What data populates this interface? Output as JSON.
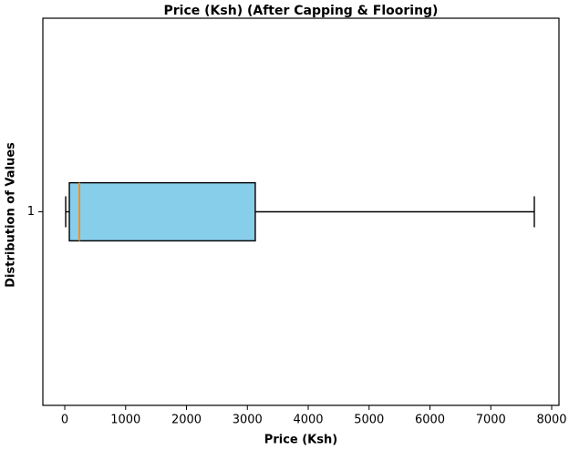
{
  "chart_data": {
    "type": "box",
    "title": "Price (Ksh) (After Capping & Flooring)",
    "xlabel": "Price (Ksh)",
    "ylabel": "Distribution of Values",
    "categories": [
      "1"
    ],
    "boxes": [
      {
        "whisker_low": 15,
        "q1": 75,
        "median": 240,
        "q3": 3130,
        "whisker_high": 7715
      }
    ],
    "box_color": "#87ceeb",
    "median_color": "#e69138",
    "xlim": [
      -360,
      8120
    ],
    "xticks": [
      0,
      1000,
      2000,
      3000,
      4000,
      5000,
      6000,
      7000,
      8000
    ]
  }
}
